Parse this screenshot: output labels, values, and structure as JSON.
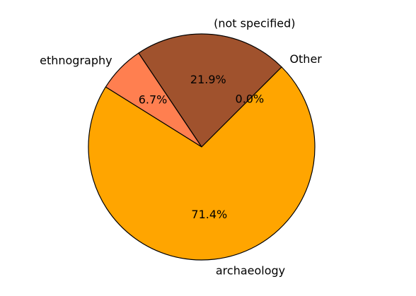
{
  "chart_data": {
    "type": "pie",
    "title": "",
    "start_angle_deg": 45,
    "direction": "counterclockwise",
    "edgecolor": "#000000",
    "slices": [
      {
        "label": "Other",
        "percent_label": "0.0%",
        "value": 0.0,
        "color": "#2F6DB5"
      },
      {
        "label": "(not specified)",
        "percent_label": "21.9%",
        "value": 21.9,
        "color": "#A0522D"
      },
      {
        "label": "ethnography",
        "percent_label": "6.7%",
        "value": 6.7,
        "color": "#FF7F50"
      },
      {
        "label": "archaeology",
        "percent_label": "71.4%",
        "value": 71.4,
        "color": "#FFA500"
      }
    ]
  }
}
